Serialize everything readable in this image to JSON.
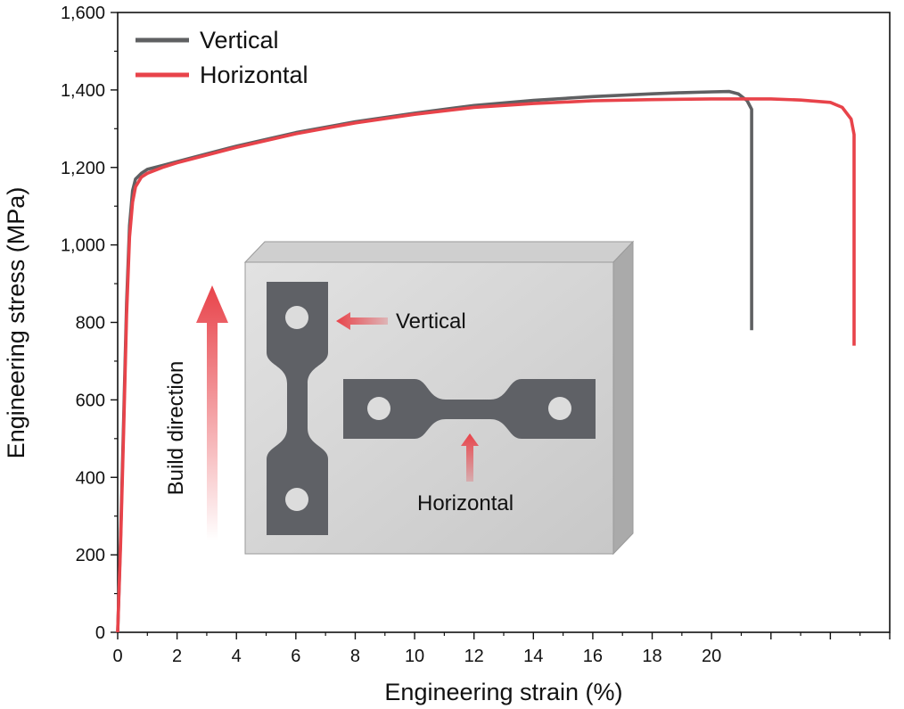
{
  "chart_data": {
    "type": "line",
    "title": "",
    "xlabel": "Engineering strain (%)",
    "ylabel": "Engineering stress (MPa)",
    "xlim": [
      0,
      26
    ],
    "ylim": [
      0,
      1600
    ],
    "x_ticks": [
      0,
      2,
      4,
      6,
      8,
      10,
      12,
      14,
      16,
      18,
      20
    ],
    "x_tick_labels": [
      "0",
      "2",
      "4",
      "6",
      "8",
      "10",
      "12",
      "14",
      "16",
      "18",
      "20"
    ],
    "y_ticks": [
      0,
      200,
      400,
      600,
      800,
      1000,
      1200,
      1400,
      1600
    ],
    "y_tick_labels": [
      "0",
      "200",
      "400",
      "600",
      "800",
      "1,000",
      "1,200",
      "1,400",
      "1,600"
    ],
    "grid": false,
    "legend_position": "top-left",
    "series": [
      {
        "name": "Vertical",
        "color": "#5f6062",
        "points": [
          [
            0,
            0
          ],
          [
            0.1,
            250
          ],
          [
            0.2,
            550
          ],
          [
            0.3,
            850
          ],
          [
            0.4,
            1050
          ],
          [
            0.5,
            1140
          ],
          [
            0.6,
            1170
          ],
          [
            0.8,
            1185
          ],
          [
            1,
            1195
          ],
          [
            1.5,
            1205
          ],
          [
            2,
            1215
          ],
          [
            3,
            1235
          ],
          [
            4,
            1255
          ],
          [
            6,
            1290
          ],
          [
            8,
            1318
          ],
          [
            10,
            1340
          ],
          [
            12,
            1360
          ],
          [
            14,
            1373
          ],
          [
            16,
            1383
          ],
          [
            18,
            1390
          ],
          [
            19,
            1393
          ],
          [
            20,
            1395
          ],
          [
            20.6,
            1396
          ],
          [
            20.9,
            1390
          ],
          [
            21.2,
            1372
          ],
          [
            21.35,
            1350
          ],
          [
            21.35,
            780
          ]
        ]
      },
      {
        "name": "Horizontal",
        "color": "#e8434a",
        "points": [
          [
            0,
            0
          ],
          [
            0.1,
            230
          ],
          [
            0.2,
            520
          ],
          [
            0.3,
            820
          ],
          [
            0.4,
            1020
          ],
          [
            0.5,
            1110
          ],
          [
            0.6,
            1150
          ],
          [
            0.8,
            1175
          ],
          [
            1,
            1185
          ],
          [
            1.5,
            1200
          ],
          [
            2,
            1212
          ],
          [
            3,
            1232
          ],
          [
            4,
            1252
          ],
          [
            6,
            1287
          ],
          [
            8,
            1315
          ],
          [
            10,
            1337
          ],
          [
            12,
            1355
          ],
          [
            14,
            1365
          ],
          [
            16,
            1372
          ],
          [
            18,
            1375
          ],
          [
            20,
            1377
          ],
          [
            22,
            1377
          ],
          [
            23,
            1374
          ],
          [
            24,
            1368
          ],
          [
            24.4,
            1355
          ],
          [
            24.7,
            1325
          ],
          [
            24.8,
            1285
          ],
          [
            24.8,
            740
          ]
        ]
      }
    ]
  },
  "inset": {
    "label_vertical": "Vertical",
    "label_horizontal": "Horizontal",
    "label_build": "Build direction",
    "colors": {
      "block_face": "#dcdcdc",
      "block_edge": "#b9b9b9",
      "specimen": "#5f6166",
      "arrow": "#e8434a"
    }
  }
}
